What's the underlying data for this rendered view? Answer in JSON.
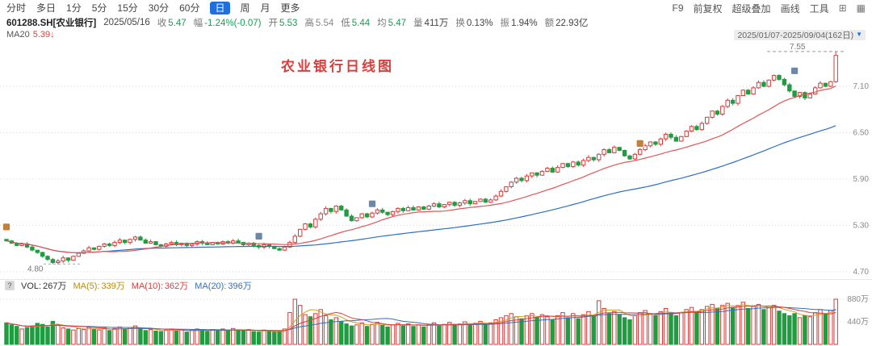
{
  "toolbar": {
    "periods": [
      "分时",
      "多日",
      "1分",
      "5分",
      "15分",
      "30分",
      "60分",
      "日",
      "周",
      "月",
      "更多"
    ],
    "active_period": "日",
    "right": [
      "F9",
      "前复权",
      "超级叠加",
      "画线",
      "工具"
    ],
    "icons": [
      {
        "name": "grid-icon",
        "glyph": "⊞"
      },
      {
        "name": "layout-panels-icon",
        "glyph": "▦"
      }
    ]
  },
  "info_bar": {
    "symbol": "601288.SH[农业银行]",
    "date": "2025/05/16",
    "fields": [
      {
        "label": "收",
        "value": "5.47"
      },
      {
        "label": "幅",
        "value": "-1.24%(-0.07)"
      },
      {
        "label": "开",
        "value": "5.53"
      },
      {
        "label": "高",
        "value": "5.54"
      },
      {
        "label": "低",
        "value": "5.44"
      },
      {
        "label": "均",
        "value": "5.47"
      },
      {
        "label": "量",
        "value": "411万"
      },
      {
        "label": "换",
        "value": "0.13%"
      },
      {
        "label": "振",
        "value": "1.94%"
      },
      {
        "label": "额",
        "value": "22.93亿"
      }
    ]
  },
  "ma_bar": {
    "label": "MA20",
    "value": "5.39↓",
    "range": "2025/01/07-2025/09/04(162日)",
    "range_arrow": "▼"
  },
  "vol_bar": {
    "help": "?",
    "items": [
      {
        "label": "VOL:",
        "value": "267万"
      },
      {
        "label": "MA(5):",
        "value": "339万"
      },
      {
        "label": "MA(10):",
        "value": "362万"
      },
      {
        "label": "MA(20):",
        "value": "396万"
      }
    ]
  },
  "chart_data": {
    "type": "candlestick",
    "title": "农业银行日线图",
    "symbol": "601288.SH 农业银行",
    "period": "日线",
    "date_range": "2025/01/07-2025/09/04",
    "days": 162,
    "ylim": [
      4.7,
      7.7
    ],
    "y_ticks": [
      7.1,
      6.5,
      5.9,
      5.3,
      4.7
    ],
    "first_open": 5.12,
    "closes": [
      5.1,
      5.07,
      5.04,
      5.06,
      5.02,
      4.98,
      4.95,
      4.9,
      4.86,
      4.82,
      4.84,
      4.88,
      4.85,
      4.9,
      4.94,
      4.97,
      5.01,
      4.99,
      5.03,
      5.06,
      5.04,
      5.08,
      5.11,
      5.08,
      5.12,
      5.15,
      5.11,
      5.07,
      5.09,
      5.05,
      5.03,
      5.06,
      5.08,
      5.05,
      5.07,
      5.04,
      5.06,
      5.09,
      5.07,
      5.05,
      5.08,
      5.06,
      5.09,
      5.07,
      5.1,
      5.08,
      5.05,
      5.07,
      5.04,
      5.02,
      5.05,
      5.03,
      5.0,
      4.98,
      5.02,
      5.08,
      5.16,
      5.25,
      5.32,
      5.28,
      5.38,
      5.45,
      5.52,
      5.48,
      5.55,
      5.5,
      5.42,
      5.36,
      5.4,
      5.45,
      5.41,
      5.46,
      5.5,
      5.47,
      5.44,
      5.48,
      5.52,
      5.49,
      5.53,
      5.5,
      5.54,
      5.51,
      5.55,
      5.58,
      5.54,
      5.57,
      5.6,
      5.56,
      5.59,
      5.62,
      5.58,
      5.61,
      5.64,
      5.6,
      5.63,
      5.68,
      5.74,
      5.8,
      5.86,
      5.91,
      5.88,
      5.94,
      5.98,
      5.95,
      6.0,
      6.04,
      5.99,
      6.05,
      6.1,
      6.06,
      6.12,
      6.08,
      6.14,
      6.18,
      6.15,
      6.22,
      6.28,
      6.24,
      6.31,
      6.27,
      6.2,
      6.16,
      6.22,
      6.28,
      6.33,
      6.38,
      6.35,
      6.42,
      6.48,
      6.44,
      6.39,
      6.45,
      6.52,
      6.58,
      6.54,
      6.62,
      6.7,
      6.78,
      6.74,
      6.84,
      6.92,
      6.88,
      6.98,
      7.05,
      7.0,
      7.08,
      7.15,
      7.1,
      7.18,
      7.24,
      7.19,
      7.12,
      7.04,
      6.97,
      7.02,
      6.95,
      7.0,
      7.08,
      7.14,
      7.1,
      7.16,
      7.5
    ],
    "volumes": [
      420,
      380,
      350,
      300,
      330,
      360,
      410,
      390,
      340,
      450,
      380,
      320,
      300,
      280,
      310,
      290,
      330,
      300,
      280,
      320,
      270,
      310,
      340,
      290,
      330,
      360,
      300,
      270,
      290,
      260,
      250,
      280,
      300,
      260,
      290,
      240,
      270,
      300,
      280,
      250,
      290,
      260,
      300,
      270,
      310,
      280,
      260,
      290,
      250,
      240,
      280,
      260,
      240,
      260,
      300,
      620,
      880,
      760,
      580,
      540,
      600,
      680,
      560,
      480,
      520,
      440,
      400,
      360,
      380,
      420,
      350,
      390,
      430,
      370,
      340,
      380,
      410,
      360,
      400,
      350,
      380,
      340,
      390,
      420,
      360,
      390,
      430,
      370,
      400,
      440,
      380,
      410,
      450,
      390,
      420,
      480,
      520,
      560,
      600,
      540,
      500,
      560,
      600,
      520,
      580,
      540,
      480,
      560,
      620,
      520,
      600,
      500,
      580,
      640,
      560,
      850,
      700,
      600,
      640,
      580,
      520,
      480,
      560,
      620,
      660,
      600,
      560,
      640,
      700,
      620,
      560,
      620,
      680,
      720,
      640,
      680,
      740,
      780,
      700,
      760,
      800,
      720,
      760,
      820,
      700,
      740,
      780,
      680,
      720,
      760,
      650,
      600,
      560,
      600,
      520,
      560,
      540,
      620,
      680,
      600,
      660,
      880
    ],
    "low_point": {
      "day": 9,
      "price": 4.8,
      "label": "4.80"
    },
    "high_point": {
      "day": 161,
      "price": 7.55,
      "label": "7.55"
    },
    "annotation": {
      "text": "农业银行日线图",
      "color": "#e03c3c"
    },
    "ma": {
      "price_short": 20,
      "price_long": 60,
      "vol": [
        5,
        10,
        20
      ]
    },
    "volume_ticks": [
      {
        "value": 880,
        "label": "880万"
      },
      {
        "value": 440,
        "label": "440万"
      }
    ],
    "markers": [
      {
        "day": 0,
        "price": 5.28,
        "color": "#c0813f"
      },
      {
        "day": 49,
        "price": 5.16,
        "color": "#6d87a8"
      },
      {
        "day": 71,
        "price": 5.58,
        "color": "#6d87a8"
      },
      {
        "day": 123,
        "price": 6.36,
        "color": "#c0813f"
      },
      {
        "day": 153,
        "price": 7.3,
        "color": "#6d87a8"
      }
    ],
    "colors": {
      "up": "#d93a3a",
      "down": "#1f9d40",
      "ma_price_short": "#e05656",
      "ma_price_long": "#2f6fc4",
      "ma_vol_5": "#c8a020",
      "ma_vol_10": "#e03c3c",
      "ma_vol_20": "#2f6fc4",
      "grid": "#d9d9d9",
      "axis_text": "#8a8a8a"
    }
  }
}
